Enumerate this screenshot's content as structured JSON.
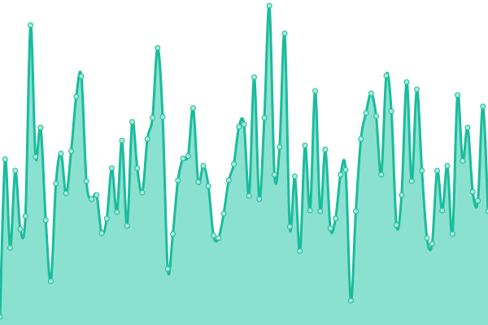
{
  "chart_data": {
    "type": "area",
    "ylim": [
      0,
      400
    ],
    "line_color": "#1abc9c",
    "fill_color": "#8be1d0",
    "marker_fill": "#a8ead9",
    "values": [
      10,
      204,
      95,
      190,
      118,
      134,
      369,
      207,
      243,
      129,
      54,
      174,
      211,
      162,
      214,
      281,
      306,
      177,
      155,
      160,
      113,
      131,
      193,
      139,
      227,
      122,
      250,
      193,
      163,
      229,
      255,
      341,
      256,
      69,
      112,
      178,
      205,
      208,
      267,
      176,
      196,
      171,
      110,
      107,
      137,
      178,
      198,
      244,
      247,
      159,
      305,
      155,
      255,
      393,
      185,
      219,
      359,
      121,
      183,
      91,
      221,
      141,
      288,
      140,
      216,
      119,
      131,
      185,
      191,
      30,
      140,
      229,
      261,
      285,
      257,
      185,
      307,
      263,
      123,
      160,
      299,
      177,
      290,
      190,
      107,
      100,
      190,
      141,
      196,
      112,
      283,
      202,
      243,
      164,
      153,
      269,
      140
    ]
  }
}
